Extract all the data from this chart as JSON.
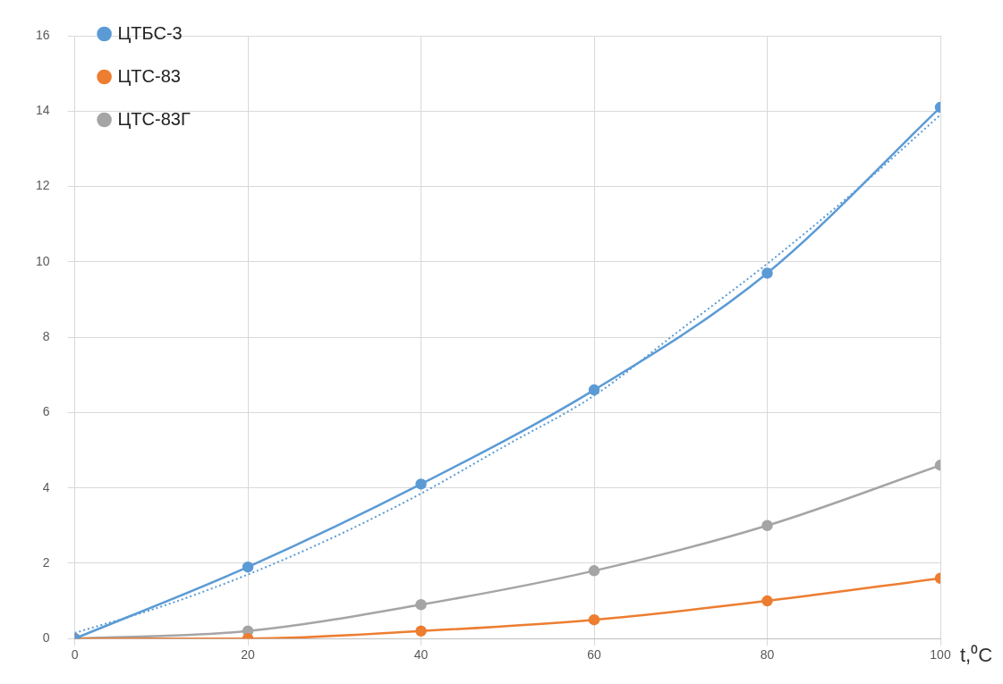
{
  "chart_data": {
    "type": "line",
    "xlabel": "t,⁰C",
    "xlim": [
      0,
      100
    ],
    "xticks": [
      0,
      20,
      40,
      60,
      80,
      100
    ],
    "ylim": [
      0,
      16
    ],
    "yticks": [
      0,
      2,
      4,
      6,
      8,
      10,
      12,
      14,
      16
    ],
    "grid": true,
    "legend": "top left",
    "marker": "circle",
    "line_style": "solid",
    "series": [
      {
        "name": "ЦТБС-3",
        "color": "#5b9bd5",
        "x": [
          0,
          20,
          40,
          60,
          80,
          100
        ],
        "values": [
          0,
          1.9,
          4.1,
          6.6,
          9.7,
          14.1
        ]
      },
      {
        "name": "ЦТС-83",
        "color": "#ed7d31",
        "x": [
          0,
          20,
          40,
          60,
          80,
          100
        ],
        "values": [
          0,
          0,
          0.2,
          0.5,
          1.0,
          1.6
        ]
      },
      {
        "name": "ЦТС-83Г",
        "color": "#a5a5a5",
        "x": [
          0,
          20,
          40,
          60,
          80,
          100
        ],
        "values": [
          0,
          0.2,
          0.9,
          1.8,
          3.0,
          4.6
        ]
      },
      {
        "type": "line",
        "color": "#5b9bd5",
        "marker": "none",
        "line_style": "dotted",
        "x": [
          0,
          10,
          20,
          30,
          40,
          50,
          60,
          70,
          80,
          90,
          100
        ],
        "values": [
          0.15,
          0.85,
          1.7,
          2.7,
          3.85,
          5.15,
          6.45,
          8.2,
          9.95,
          11.85,
          13.9
        ]
      }
    ]
  }
}
